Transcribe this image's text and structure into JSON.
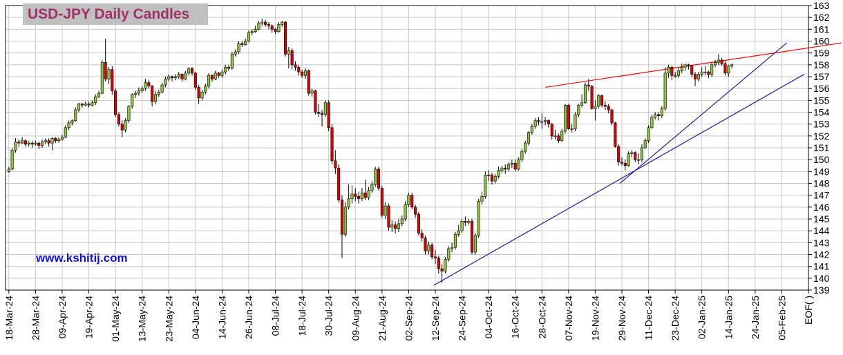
{
  "chart_data": {
    "type": "candlestick",
    "title": "USD-JPY Daily Candles",
    "annotation": "www.kshitij.com",
    "colors": {
      "up": "#8cc63e",
      "down": "#dd0000",
      "outline": "#000000"
    },
    "grid": true,
    "xlim": [
      -1,
      240
    ],
    "ylim": [
      139,
      163
    ],
    "yticks": [
      139,
      140,
      141,
      142,
      143,
      144,
      145,
      146,
      147,
      148,
      149,
      150,
      151,
      152,
      153,
      154,
      155,
      156,
      157,
      158,
      159,
      160,
      161,
      162,
      163
    ],
    "xticks": [
      {
        "value": 0,
        "label": "18-Mar-24"
      },
      {
        "value": 8,
        "label": "28-Mar-24"
      },
      {
        "value": 16,
        "label": "09-Apr-24"
      },
      {
        "value": 24,
        "label": "19-Apr-24"
      },
      {
        "value": 32,
        "label": "01-May-24"
      },
      {
        "value": 40,
        "label": "13-May-24"
      },
      {
        "value": 48,
        "label": "23-May-24"
      },
      {
        "value": 56,
        "label": "04-Jun-24"
      },
      {
        "value": 64,
        "label": "14-Jun-24"
      },
      {
        "value": 72,
        "label": "26-Jun-24"
      },
      {
        "value": 80,
        "label": "08-Jul-24"
      },
      {
        "value": 88,
        "label": "18-Jul-24"
      },
      {
        "value": 96,
        "label": "30-Jul-24"
      },
      {
        "value": 104,
        "label": "09-Aug-24"
      },
      {
        "value": 112,
        "label": "21-Aug-24"
      },
      {
        "value": 120,
        "label": "02-Sep-24"
      },
      {
        "value": 128,
        "label": "12-Sep-24"
      },
      {
        "value": 136,
        "label": "24-Sep-24"
      },
      {
        "value": 144,
        "label": "04-Oct-24"
      },
      {
        "value": 152,
        "label": "16-Oct-24"
      },
      {
        "value": 160,
        "label": "28-Oct-24"
      },
      {
        "value": 168,
        "label": "07-Nov-24"
      },
      {
        "value": 176,
        "label": "19-Nov-24"
      },
      {
        "value": 184,
        "label": "29-Nov-24"
      },
      {
        "value": 192,
        "label": "11-Dec-24"
      },
      {
        "value": 200,
        "label": "23-Dec-24"
      },
      {
        "value": 208,
        "label": "02-Jan-25"
      },
      {
        "value": 216,
        "label": "14-Jan-25"
      },
      {
        "value": 224,
        "label": "24-Jan-25"
      },
      {
        "value": 232,
        "label": "05-Feb-25"
      },
      {
        "value": 240,
        "label": "EOF( )"
      }
    ],
    "trendlines": [
      {
        "color": "#ff0000",
        "points": [
          [
            161,
            156.1
          ],
          [
            250,
            159.85
          ]
        ]
      },
      {
        "color": "#1a1aaa",
        "points": [
          [
            127.5,
            139.4
          ],
          [
            238.7,
            157.2
          ]
        ]
      },
      {
        "color": "#1a1aaa",
        "points": [
          [
            183.4,
            148.0
          ],
          [
            233.5,
            159.85
          ]
        ]
      }
    ],
    "ohlc": [
      [
        149.0,
        149.4,
        148.9,
        149.2
      ],
      [
        149.2,
        151.0,
        149.1,
        150.8
      ],
      [
        150.8,
        151.8,
        150.6,
        151.5
      ],
      [
        151.5,
        151.7,
        151.1,
        151.4
      ],
      [
        151.4,
        151.9,
        151.3,
        151.6
      ],
      [
        151.6,
        151.7,
        151.1,
        151.3
      ],
      [
        151.3,
        151.6,
        151.1,
        151.4
      ],
      [
        151.4,
        151.6,
        151.0,
        151.3
      ],
      [
        151.3,
        151.6,
        151.2,
        151.4
      ],
      [
        151.4,
        151.5,
        150.9,
        151.2
      ],
      [
        151.2,
        151.7,
        151.0,
        151.5
      ],
      [
        151.5,
        151.8,
        151.3,
        151.6
      ],
      [
        151.6,
        151.8,
        151.1,
        151.4
      ],
      [
        151.4,
        151.9,
        150.8,
        151.8
      ],
      [
        151.8,
        151.9,
        151.4,
        151.6
      ],
      [
        151.6,
        151.9,
        151.4,
        151.7
      ],
      [
        151.7,
        152.1,
        151.6,
        151.9
      ],
      [
        151.9,
        152.9,
        151.8,
        152.7
      ],
      [
        152.7,
        153.3,
        152.5,
        153.1
      ],
      [
        153.1,
        153.4,
        152.9,
        153.3
      ],
      [
        153.3,
        154.4,
        153.2,
        154.2
      ],
      [
        154.2,
        154.8,
        154.0,
        154.7
      ],
      [
        154.7,
        154.8,
        154.4,
        154.6
      ],
      [
        154.6,
        154.9,
        154.5,
        154.7
      ],
      [
        154.7,
        154.9,
        154.4,
        154.6
      ],
      [
        154.6,
        155.0,
        154.5,
        154.8
      ],
      [
        154.8,
        155.5,
        154.6,
        155.3
      ],
      [
        155.3,
        155.8,
        155.2,
        155.6
      ],
      [
        155.6,
        158.4,
        155.5,
        158.2
      ],
      [
        158.2,
        160.2,
        156.6,
        156.8
      ],
      [
        156.8,
        157.8,
        156.4,
        157.6
      ],
      [
        157.6,
        157.9,
        155.5,
        155.8
      ],
      [
        155.8,
        156.0,
        153.6,
        153.8
      ],
      [
        153.8,
        154.0,
        152.8,
        153.0
      ],
      [
        153.0,
        153.3,
        151.9,
        152.5
      ],
      [
        152.5,
        153.5,
        152.3,
        153.3
      ],
      [
        153.3,
        154.6,
        153.1,
        154.5
      ],
      [
        154.5,
        155.6,
        154.3,
        155.5
      ],
      [
        155.5,
        155.8,
        155.2,
        155.6
      ],
      [
        155.6,
        156.1,
        155.4,
        155.8
      ],
      [
        155.8,
        156.2,
        155.6,
        156.0
      ],
      [
        156.0,
        156.8,
        155.8,
        156.5
      ],
      [
        156.5,
        156.7,
        156.0,
        156.2
      ],
      [
        156.2,
        156.3,
        154.5,
        154.9
      ],
      [
        154.9,
        155.8,
        154.7,
        155.5
      ],
      [
        155.5,
        155.9,
        155.3,
        155.7
      ],
      [
        155.7,
        156.5,
        155.6,
        156.3
      ],
      [
        156.3,
        157.0,
        156.1,
        156.8
      ],
      [
        156.8,
        157.2,
        156.6,
        157.0
      ],
      [
        157.0,
        157.1,
        156.6,
        156.9
      ],
      [
        156.9,
        157.2,
        156.7,
        157.0
      ],
      [
        157.0,
        157.4,
        156.8,
        157.2
      ],
      [
        157.2,
        157.3,
        156.6,
        156.8
      ],
      [
        156.8,
        157.5,
        156.7,
        157.3
      ],
      [
        157.3,
        157.8,
        157.1,
        157.7
      ],
      [
        157.7,
        157.8,
        157.1,
        157.3
      ],
      [
        157.3,
        157.4,
        155.9,
        156.1
      ],
      [
        156.1,
        156.3,
        154.7,
        155.2
      ],
      [
        155.2,
        155.9,
        155.0,
        155.7
      ],
      [
        155.7,
        156.4,
        155.5,
        156.2
      ],
      [
        156.2,
        157.3,
        156.0,
        157.1
      ],
      [
        157.1,
        157.2,
        156.6,
        156.8
      ],
      [
        156.8,
        157.5,
        156.7,
        157.3
      ],
      [
        157.3,
        157.4,
        156.9,
        157.1
      ],
      [
        157.1,
        157.6,
        156.9,
        157.4
      ],
      [
        157.4,
        158.0,
        157.2,
        157.8
      ],
      [
        157.8,
        158.0,
        157.5,
        157.7
      ],
      [
        157.7,
        159.1,
        157.6,
        158.9
      ],
      [
        158.9,
        159.3,
        158.7,
        159.1
      ],
      [
        159.1,
        160.0,
        158.9,
        159.8
      ],
      [
        159.8,
        160.0,
        159.5,
        159.7
      ],
      [
        159.7,
        160.2,
        159.6,
        160.0
      ],
      [
        160.0,
        160.9,
        159.9,
        160.7
      ],
      [
        160.7,
        161.0,
        160.5,
        160.8
      ],
      [
        160.8,
        161.3,
        160.7,
        161.0
      ],
      [
        161.0,
        161.7,
        160.9,
        161.5
      ],
      [
        161.5,
        161.9,
        161.3,
        161.6
      ],
      [
        161.6,
        161.8,
        161.2,
        161.4
      ],
      [
        161.4,
        161.6,
        161.0,
        161.3
      ],
      [
        161.3,
        161.4,
        160.7,
        161.0
      ],
      [
        161.0,
        161.1,
        160.6,
        160.8
      ],
      [
        160.8,
        161.6,
        160.7,
        161.4
      ],
      [
        161.4,
        161.7,
        161.2,
        161.6
      ],
      [
        161.6,
        161.7,
        158.7,
        158.9
      ],
      [
        158.9,
        159.5,
        157.7,
        159.2
      ],
      [
        159.2,
        159.4,
        157.6,
        158.0
      ],
      [
        158.0,
        158.3,
        157.5,
        157.8
      ],
      [
        157.8,
        158.0,
        157.1,
        157.4
      ],
      [
        157.4,
        157.6,
        156.9,
        157.1
      ],
      [
        157.1,
        157.7,
        156.8,
        157.5
      ],
      [
        157.5,
        157.6,
        155.4,
        155.6
      ],
      [
        155.6,
        156.0,
        155.3,
        155.8
      ],
      [
        155.8,
        155.9,
        153.8,
        154.0
      ],
      [
        154.0,
        154.7,
        153.6,
        153.9
      ],
      [
        153.9,
        154.2,
        152.8,
        153.8
      ],
      [
        153.8,
        155.0,
        153.6,
        154.8
      ],
      [
        154.8,
        155.0,
        152.4,
        152.7
      ],
      [
        152.7,
        153.0,
        149.6,
        149.9
      ],
      [
        149.9,
        150.8,
        148.8,
        149.3
      ],
      [
        149.3,
        149.6,
        146.4,
        146.6
      ],
      [
        146.6,
        147.0,
        141.7,
        143.7
      ],
      [
        143.7,
        146.4,
        143.5,
        146.0
      ],
      [
        146.0,
        147.9,
        145.8,
        146.7
      ],
      [
        146.7,
        147.8,
        146.3,
        147.1
      ],
      [
        147.1,
        147.6,
        146.5,
        146.9
      ],
      [
        146.9,
        147.3,
        146.3,
        146.7
      ],
      [
        146.7,
        147.6,
        146.5,
        147.2
      ],
      [
        147.2,
        148.3,
        146.6,
        146.8
      ],
      [
        146.8,
        147.7,
        146.6,
        147.4
      ],
      [
        147.4,
        148.2,
        147.2,
        147.9
      ],
      [
        147.9,
        149.4,
        147.7,
        149.2
      ],
      [
        149.2,
        149.4,
        147.4,
        147.6
      ],
      [
        147.6,
        147.8,
        145.1,
        145.3
      ],
      [
        145.3,
        146.4,
        145.0,
        146.1
      ],
      [
        146.1,
        146.3,
        144.0,
        144.3
      ],
      [
        144.3,
        144.9,
        143.9,
        144.5
      ],
      [
        144.5,
        144.8,
        143.8,
        144.2
      ],
      [
        144.2,
        145.0,
        143.9,
        144.6
      ],
      [
        144.6,
        145.3,
        144.4,
        145.0
      ],
      [
        145.0,
        146.5,
        144.8,
        146.2
      ],
      [
        146.2,
        147.2,
        146.0,
        147.0
      ],
      [
        147.0,
        147.2,
        145.8,
        146.0
      ],
      [
        146.0,
        146.2,
        145.1,
        145.4
      ],
      [
        145.4,
        145.6,
        143.6,
        143.8
      ],
      [
        143.8,
        144.1,
        143.1,
        143.4
      ],
      [
        143.4,
        143.6,
        142.0,
        142.3
      ],
      [
        142.3,
        143.1,
        142.0,
        142.8
      ],
      [
        142.8,
        143.0,
        141.6,
        141.8
      ],
      [
        141.8,
        142.4,
        141.2,
        141.7
      ],
      [
        141.7,
        141.9,
        140.4,
        140.8
      ],
      [
        140.8,
        141.2,
        139.6,
        140.6
      ],
      [
        140.6,
        141.8,
        140.4,
        141.6
      ],
      [
        141.6,
        142.7,
        141.4,
        142.5
      ],
      [
        142.5,
        143.0,
        142.2,
        142.6
      ],
      [
        142.6,
        143.9,
        142.4,
        143.7
      ],
      [
        143.7,
        144.5,
        143.5,
        144.0
      ],
      [
        144.0,
        145.0,
        143.8,
        144.8
      ],
      [
        144.8,
        145.2,
        144.4,
        144.7
      ],
      [
        144.7,
        145.0,
        144.5,
        144.8
      ],
      [
        144.8,
        145.0,
        142.0,
        142.2
      ],
      [
        142.2,
        143.8,
        142.0,
        143.6
      ],
      [
        143.6,
        146.7,
        143.4,
        146.5
      ],
      [
        146.5,
        147.3,
        146.2,
        146.9
      ],
      [
        146.9,
        149.0,
        146.7,
        148.7
      ],
      [
        148.7,
        149.1,
        148.2,
        148.7
      ],
      [
        148.7,
        148.9,
        147.9,
        148.2
      ],
      [
        148.2,
        148.8,
        148.0,
        148.6
      ],
      [
        148.6,
        149.4,
        148.4,
        149.1
      ],
      [
        149.1,
        149.5,
        148.9,
        149.3
      ],
      [
        149.3,
        149.6,
        148.8,
        149.2
      ],
      [
        149.2,
        149.8,
        149.0,
        149.6
      ],
      [
        149.6,
        150.0,
        149.3,
        149.7
      ],
      [
        149.7,
        150.0,
        149.0,
        149.2
      ],
      [
        149.2,
        150.2,
        149.1,
        150.0
      ],
      [
        150.0,
        150.9,
        149.8,
        150.7
      ],
      [
        150.7,
        151.6,
        150.5,
        151.4
      ],
      [
        151.4,
        152.4,
        151.2,
        152.3
      ],
      [
        152.3,
        153.0,
        152.1,
        152.8
      ],
      [
        152.8,
        153.5,
        152.6,
        153.3
      ],
      [
        153.3,
        153.6,
        152.9,
        153.2
      ],
      [
        153.2,
        153.9,
        152.6,
        153.2
      ],
      [
        153.2,
        153.6,
        152.9,
        153.3
      ],
      [
        153.3,
        153.4,
        152.7,
        153.0
      ],
      [
        153.0,
        153.1,
        151.7,
        152.0
      ],
      [
        152.0,
        152.5,
        151.7,
        152.0
      ],
      [
        152.0,
        152.2,
        151.4,
        151.6
      ],
      [
        151.6,
        152.6,
        151.5,
        152.4
      ],
      [
        152.4,
        154.7,
        152.2,
        154.6
      ],
      [
        154.6,
        154.7,
        152.5,
        152.6
      ],
      [
        152.6,
        153.0,
        152.3,
        152.6
      ],
      [
        152.6,
        154.0,
        152.4,
        153.8
      ],
      [
        153.8,
        154.7,
        153.6,
        154.6
      ],
      [
        154.6,
        155.5,
        154.4,
        154.8
      ],
      [
        154.8,
        156.5,
        154.7,
        156.3
      ],
      [
        156.3,
        156.8,
        155.8,
        156.2
      ],
      [
        156.2,
        156.3,
        154.2,
        154.3
      ],
      [
        154.3,
        155.0,
        153.3,
        154.5
      ],
      [
        154.5,
        155.5,
        154.3,
        155.4
      ],
      [
        155.4,
        155.5,
        154.4,
        154.6
      ],
      [
        154.6,
        154.9,
        154.2,
        154.5
      ],
      [
        154.5,
        154.7,
        153.9,
        154.2
      ],
      [
        154.2,
        154.3,
        152.9,
        153.1
      ],
      [
        153.1,
        153.2,
        151.0,
        151.1
      ],
      [
        151.1,
        151.3,
        149.5,
        149.8
      ],
      [
        149.8,
        150.2,
        149.5,
        149.7
      ],
      [
        149.7,
        150.0,
        149.1,
        149.5
      ],
      [
        149.5,
        150.7,
        149.4,
        150.5
      ],
      [
        150.5,
        150.8,
        150.2,
        150.6
      ],
      [
        150.6,
        150.7,
        149.8,
        150.0
      ],
      [
        150.0,
        150.5,
        149.6,
        150.0
      ],
      [
        150.0,
        151.3,
        149.8,
        151.0
      ],
      [
        151.0,
        151.8,
        150.9,
        151.6
      ],
      [
        151.6,
        152.9,
        151.4,
        152.7
      ],
      [
        152.7,
        153.8,
        152.6,
        153.6
      ],
      [
        153.6,
        154.0,
        153.4,
        153.8
      ],
      [
        153.8,
        154.0,
        153.3,
        153.7
      ],
      [
        153.7,
        154.5,
        153.5,
        154.3
      ],
      [
        154.3,
        157.8,
        154.1,
        157.3
      ],
      [
        157.3,
        158.0,
        156.9,
        157.8
      ],
      [
        157.8,
        157.9,
        156.7,
        157.1
      ],
      [
        157.1,
        157.4,
        156.9,
        157.1
      ],
      [
        157.1,
        157.7,
        156.9,
        157.5
      ],
      [
        157.5,
        158.1,
        157.3,
        157.8
      ],
      [
        157.8,
        158.1,
        157.5,
        158.0
      ],
      [
        158.0,
        158.1,
        157.6,
        157.9
      ],
      [
        157.9,
        158.0,
        157.0,
        157.2
      ],
      [
        157.2,
        157.4,
        156.2,
        156.8
      ],
      [
        156.8,
        157.4,
        156.6,
        157.2
      ],
      [
        157.2,
        157.8,
        157.0,
        157.4
      ],
      [
        157.4,
        157.9,
        157.1,
        157.4
      ],
      [
        157.4,
        157.5,
        156.9,
        157.2
      ],
      [
        157.2,
        158.2,
        157.0,
        158.0
      ],
      [
        158.0,
        158.4,
        157.8,
        158.2
      ],
      [
        158.2,
        158.9,
        158.0,
        158.4
      ],
      [
        158.4,
        158.6,
        157.9,
        158.1
      ],
      [
        158.1,
        158.3,
        157.1,
        157.3
      ],
      [
        157.3,
        158.0,
        157.0,
        157.9
      ],
      [
        157.9,
        158.1,
        157.7,
        158.0
      ]
    ]
  }
}
